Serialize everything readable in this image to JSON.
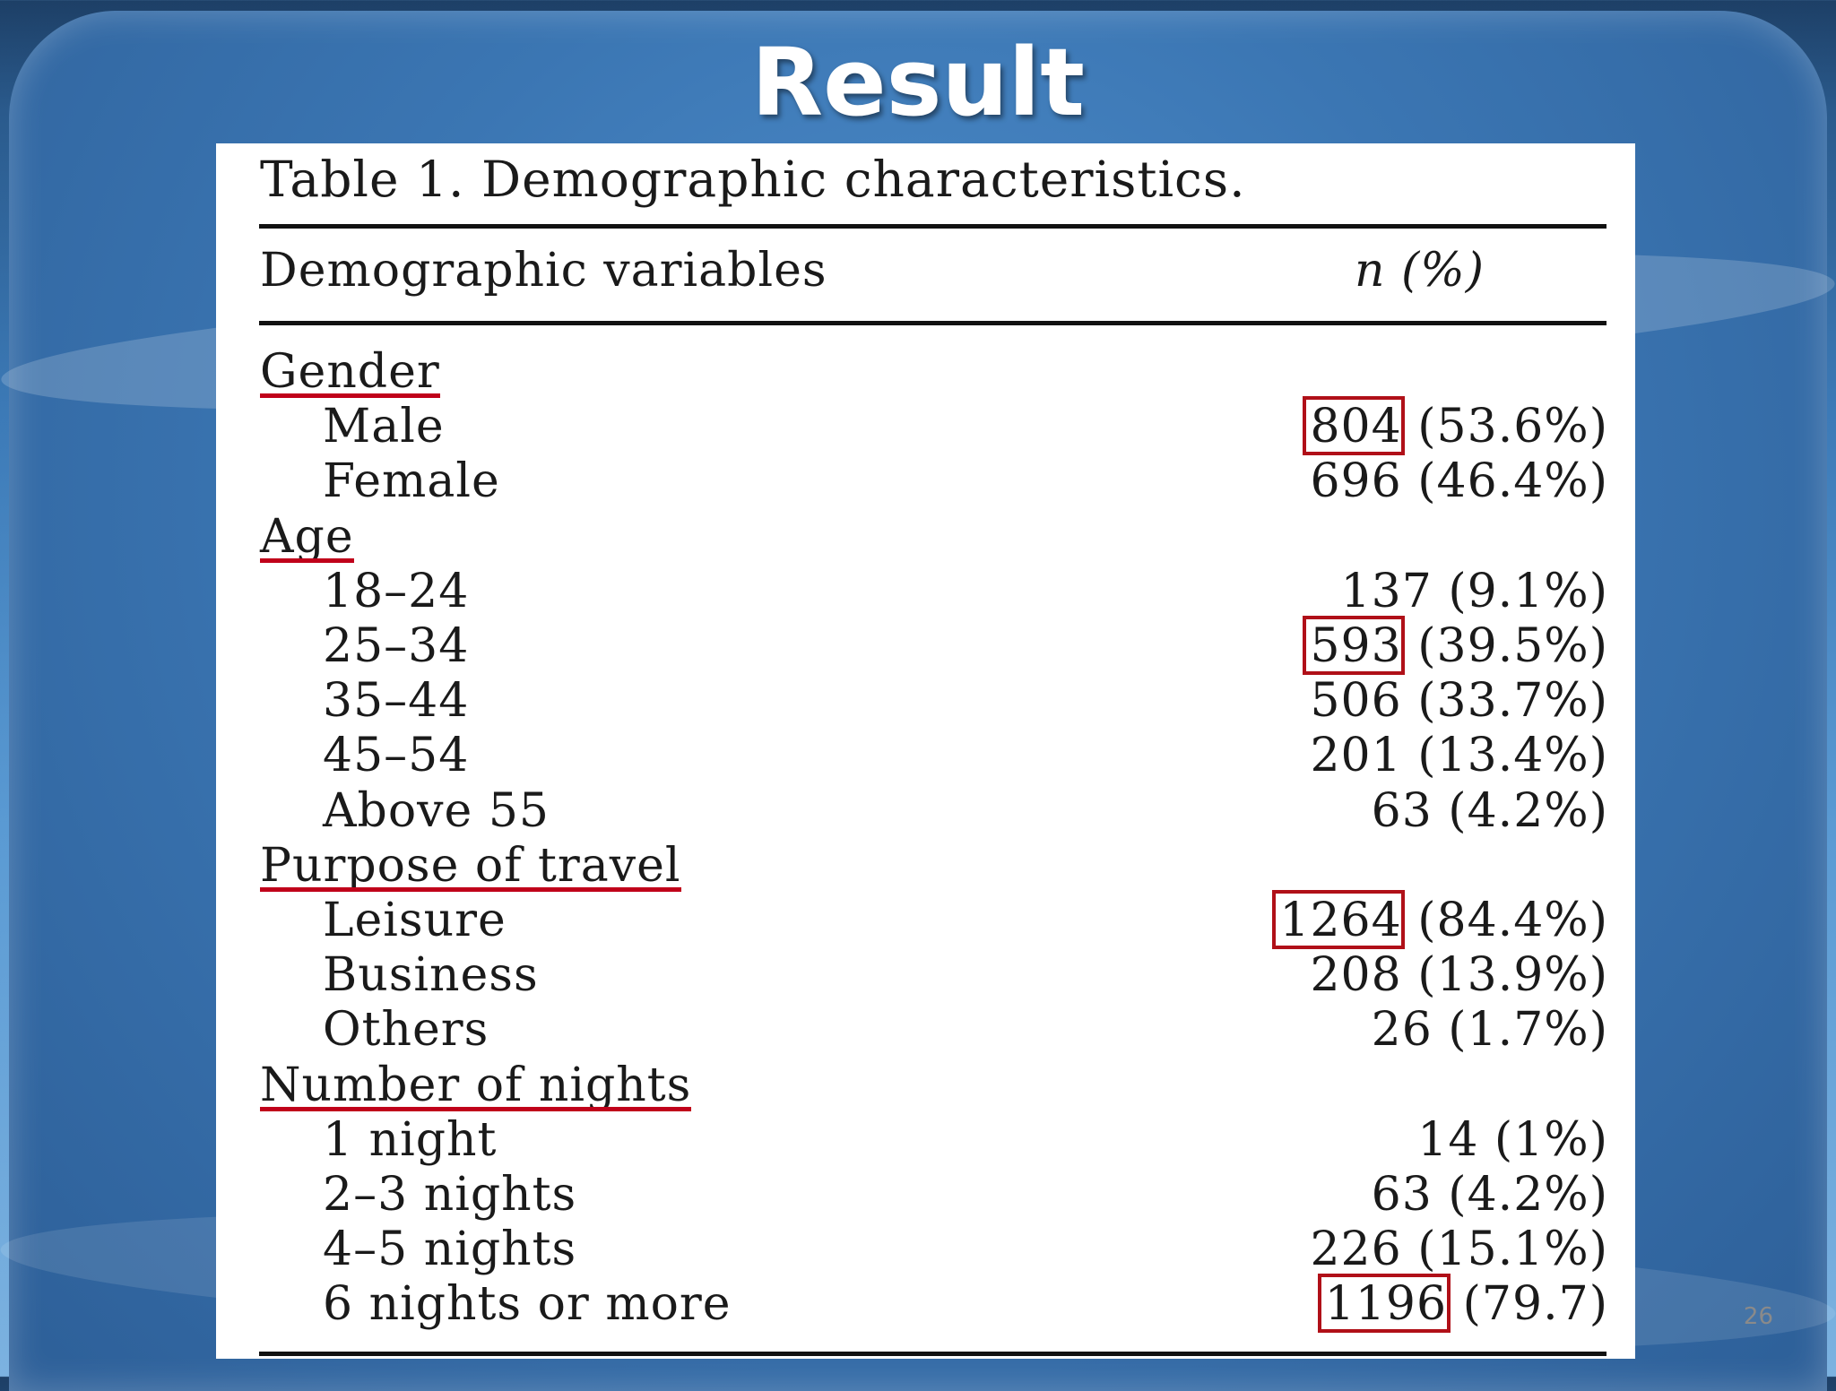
{
  "slide": {
    "title": "Result",
    "page_number": "26"
  },
  "table": {
    "caption": "Table 1. Demographic characteristics.",
    "header": {
      "variable": "Demographic variables",
      "value": "n (%)"
    },
    "rows": [
      {
        "label": "Gender",
        "value": "",
        "kind": "group",
        "underlined": true
      },
      {
        "label": "Male",
        "value": "804 (53.6%)",
        "kind": "item",
        "highlighted": "804"
      },
      {
        "label": "Female",
        "value": "696 (46.4%)",
        "kind": "item"
      },
      {
        "label": "Age",
        "value": "",
        "kind": "group",
        "underlined": true
      },
      {
        "label": "18–24",
        "value": "137 (9.1%)",
        "kind": "item"
      },
      {
        "label": "25–34",
        "value": "593 (39.5%)",
        "kind": "item",
        "highlighted": "593"
      },
      {
        "label": "35–44",
        "value": "506 (33.7%)",
        "kind": "item"
      },
      {
        "label": "45–54",
        "value": "201 (13.4%)",
        "kind": "item"
      },
      {
        "label": "Above 55",
        "value": "63 (4.2%)",
        "kind": "item"
      },
      {
        "label": "Purpose of travel",
        "value": "",
        "kind": "group",
        "underlined": true
      },
      {
        "label": "Leisure",
        "value": "1264 (84.4%)",
        "kind": "item",
        "highlighted": "1264"
      },
      {
        "label": "Business",
        "value": "208 (13.9%)",
        "kind": "item"
      },
      {
        "label": "Others",
        "value": "26 (1.7%)",
        "kind": "item"
      },
      {
        "label": "Number of nights",
        "value": "",
        "kind": "group",
        "underlined": true
      },
      {
        "label": "1 night",
        "value": "14 (1%)",
        "kind": "item"
      },
      {
        "label": "2–3 nights",
        "value": "63 (4.2%)",
        "kind": "item"
      },
      {
        "label": "4–5 nights",
        "value": "226 (15.1%)",
        "kind": "item"
      },
      {
        "label": "6 nights or more",
        "value": "1196 (79.7)",
        "kind": "item",
        "highlighted": "1196"
      }
    ]
  },
  "colors": {
    "highlight": "#b01018",
    "underline": "#c0001a"
  }
}
